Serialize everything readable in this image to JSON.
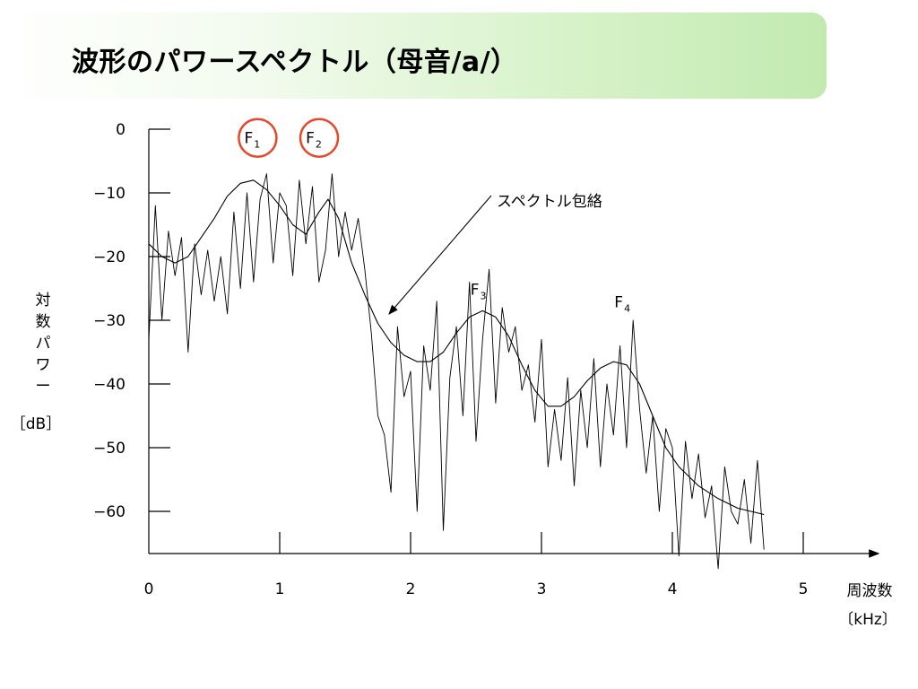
{
  "slide": {
    "title": "波形のパワースペクトル（母音/a/）"
  },
  "colors": {
    "title_bar_green": "#c2eab0",
    "formant_circle": "#e8472a",
    "line": "#000000"
  },
  "chart_data": {
    "type": "line",
    "xlabel_line1": "周波数",
    "xlabel_line2": "〔kHz〕",
    "ylabel_chars": [
      "対",
      "数",
      "パ",
      "ワ",
      "ー"
    ],
    "ylabel_unit": "［dB］",
    "xlim": [
      0,
      5.5
    ],
    "ylim": [
      -68,
      0
    ],
    "x_ticks": [
      {
        "value": 0,
        "label": "0"
      },
      {
        "value": 1,
        "label": "1"
      },
      {
        "value": 2,
        "label": "2"
      },
      {
        "value": 3,
        "label": "3"
      },
      {
        "value": 4,
        "label": "4"
      },
      {
        "value": 5,
        "label": "5"
      }
    ],
    "y_ticks": [
      {
        "value": 0,
        "label": "0"
      },
      {
        "value": -10,
        "label": "−10"
      },
      {
        "value": -20,
        "label": "−20"
      },
      {
        "value": -30,
        "label": "−30"
      },
      {
        "value": -40,
        "label": "−40"
      },
      {
        "value": -50,
        "label": "−50"
      },
      {
        "value": -60,
        "label": "−60"
      }
    ],
    "annotation": "スペクトル包絡",
    "formants": [
      {
        "name": "F",
        "sub": "1",
        "x": 0.9,
        "y": -7.0,
        "circled": true
      },
      {
        "name": "F",
        "sub": "2",
        "x": 1.37,
        "y": -7.0,
        "circled": true
      },
      {
        "name": "F",
        "sub": "3",
        "x": 2.6,
        "y": -28.5,
        "circled": false
      },
      {
        "name": "F",
        "sub": "4",
        "x": 3.7,
        "y": -30.5,
        "circled": false
      }
    ],
    "series": [
      {
        "role": "spectrum",
        "x": [
          0.0,
          0.05,
          0.1,
          0.15,
          0.2,
          0.25,
          0.3,
          0.35,
          0.4,
          0.45,
          0.5,
          0.55,
          0.6,
          0.65,
          0.7,
          0.75,
          0.8,
          0.85,
          0.9,
          0.95,
          1.0,
          1.05,
          1.1,
          1.15,
          1.2,
          1.25,
          1.3,
          1.35,
          1.4,
          1.45,
          1.5,
          1.55,
          1.6,
          1.65,
          1.7,
          1.75,
          1.8,
          1.85,
          1.9,
          1.95,
          2.0,
          2.05,
          2.1,
          2.15,
          2.2,
          2.25,
          2.3,
          2.35,
          2.4,
          2.45,
          2.5,
          2.55,
          2.6,
          2.65,
          2.7,
          2.75,
          2.8,
          2.85,
          2.9,
          2.95,
          3.0,
          3.05,
          3.1,
          3.15,
          3.2,
          3.25,
          3.3,
          3.35,
          3.4,
          3.45,
          3.5,
          3.55,
          3.6,
          3.65,
          3.7,
          3.75,
          3.8,
          3.85,
          3.9,
          3.95,
          4.0,
          4.05,
          4.1,
          4.15,
          4.2,
          4.25,
          4.3,
          4.35,
          4.4,
          4.45,
          4.5,
          4.55,
          4.6,
          4.65,
          4.7
        ],
        "values": [
          -33,
          -12,
          -30,
          -16,
          -23,
          -17,
          -35,
          -18,
          -26,
          -19,
          -27,
          -20,
          -29,
          -13,
          -25,
          -10,
          -24,
          -11,
          -7,
          -21,
          -10,
          -12,
          -23,
          -8,
          -18,
          -9,
          -24,
          -19,
          -7,
          -20,
          -13,
          -19,
          -14,
          -22,
          -32,
          -45,
          -48,
          -57,
          -31,
          -42,
          -38,
          -60,
          -34,
          -41,
          -27,
          -63,
          -39,
          -31,
          -45,
          -24,
          -49,
          -33,
          -22,
          -43,
          -28,
          -35,
          -31,
          -41,
          -37,
          -46,
          -33,
          -53,
          -44,
          -52,
          -39,
          -56,
          -41,
          -50,
          -36,
          -53,
          -40,
          -48,
          -34,
          -50,
          -30,
          -44,
          -54,
          -45,
          -60,
          -47,
          -50,
          -67,
          -49,
          -58,
          -51,
          -61,
          -56,
          -69,
          -53,
          -60,
          -62,
          -55,
          -65,
          -52,
          -66
        ]
      },
      {
        "role": "envelope",
        "x": [
          0.0,
          0.1,
          0.2,
          0.3,
          0.4,
          0.5,
          0.6,
          0.7,
          0.8,
          0.9,
          1.0,
          1.1,
          1.2,
          1.3,
          1.37,
          1.45,
          1.55,
          1.65,
          1.75,
          1.85,
          1.95,
          2.05,
          2.15,
          2.25,
          2.35,
          2.45,
          2.55,
          2.65,
          2.75,
          2.85,
          2.95,
          3.05,
          3.15,
          3.25,
          3.35,
          3.45,
          3.55,
          3.65,
          3.75,
          3.85,
          3.95,
          4.05,
          4.2,
          4.35,
          4.5,
          4.7
        ],
        "values": [
          -18,
          -20,
          -21,
          -20,
          -17,
          -14,
          -10.5,
          -8.5,
          -8,
          -9.5,
          -12,
          -15,
          -16.5,
          -13,
          -11,
          -14,
          -21,
          -26,
          -30.5,
          -33.5,
          -35.5,
          -36.5,
          -36.5,
          -35,
          -32,
          -29.5,
          -28.5,
          -29.5,
          -32.5,
          -37,
          -41,
          -43.5,
          -43.5,
          -42,
          -39.5,
          -37.5,
          -36.5,
          -37,
          -40,
          -45,
          -50,
          -53,
          -56,
          -58,
          -59.5,
          -60.5
        ]
      }
    ]
  }
}
